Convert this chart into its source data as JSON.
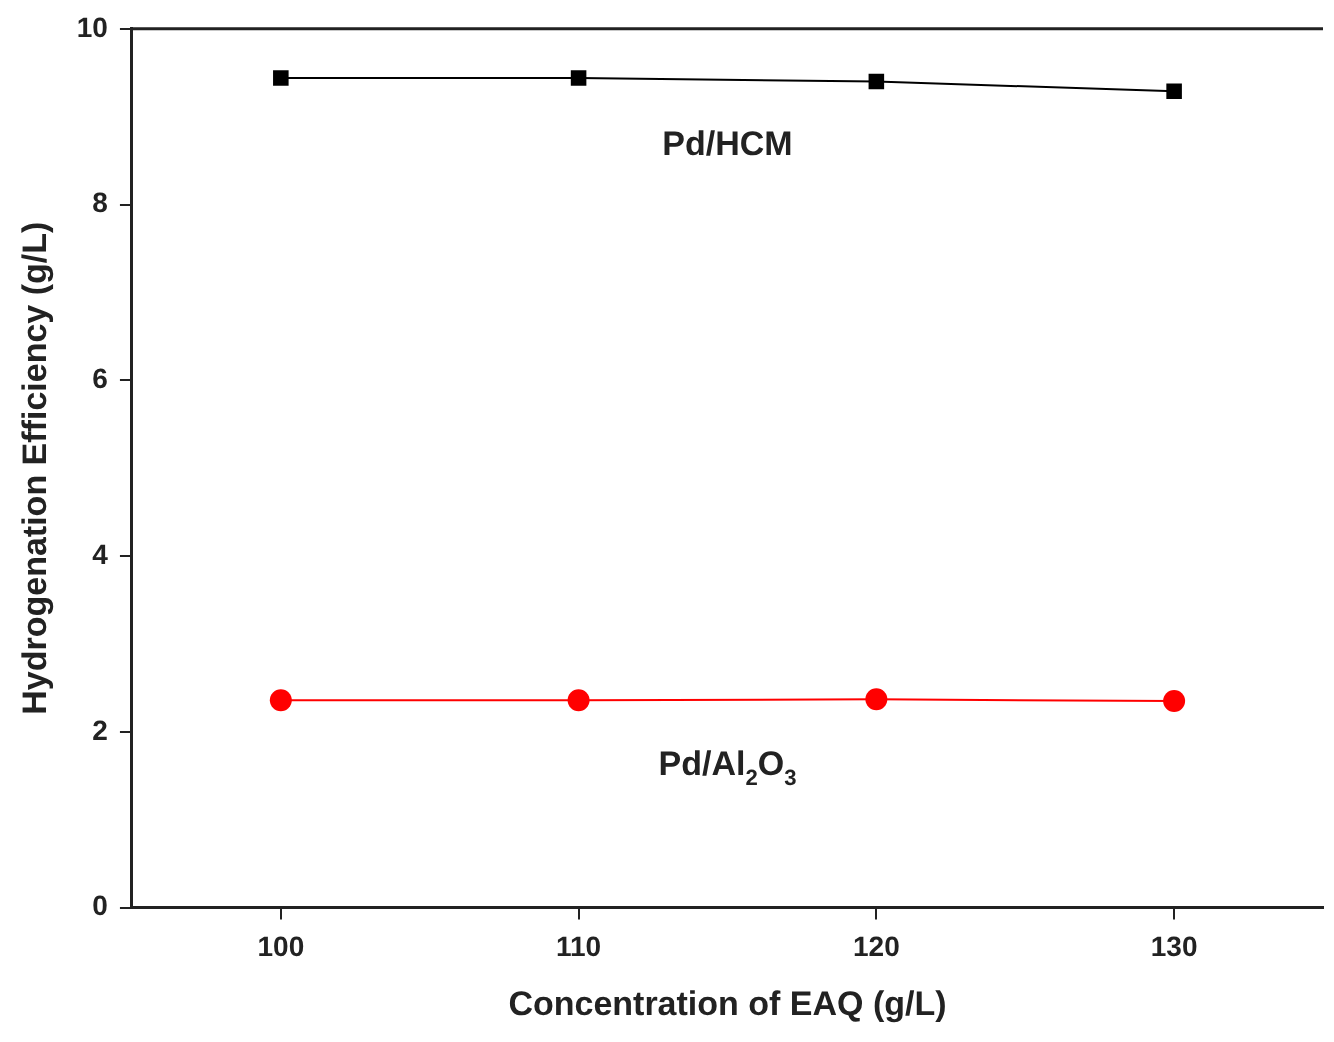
{
  "chart_data": {
    "type": "line",
    "xlabel": "Concentration of EAQ (g/L)",
    "ylabel": "Hydrogenation Efficiency (g/L)",
    "x": [
      100,
      110,
      120,
      130
    ],
    "series": [
      {
        "name": "Pd/HCM",
        "color": "#000000",
        "marker": "square",
        "values": [
          9.44,
          9.44,
          9.4,
          9.29
        ]
      },
      {
        "name": "Pd/Al$_{2}$O$_{3}$",
        "color": "#ff0000",
        "marker": "circle",
        "values": [
          2.36,
          2.36,
          2.37,
          2.35
        ]
      }
    ],
    "xlim": [
      95,
      135
    ],
    "xticks": [
      100,
      110,
      120,
      130
    ],
    "ylim": [
      0,
      10
    ],
    "yticks": [
      0,
      2,
      4,
      6,
      8,
      10
    ],
    "grid": false,
    "legend": false
  }
}
